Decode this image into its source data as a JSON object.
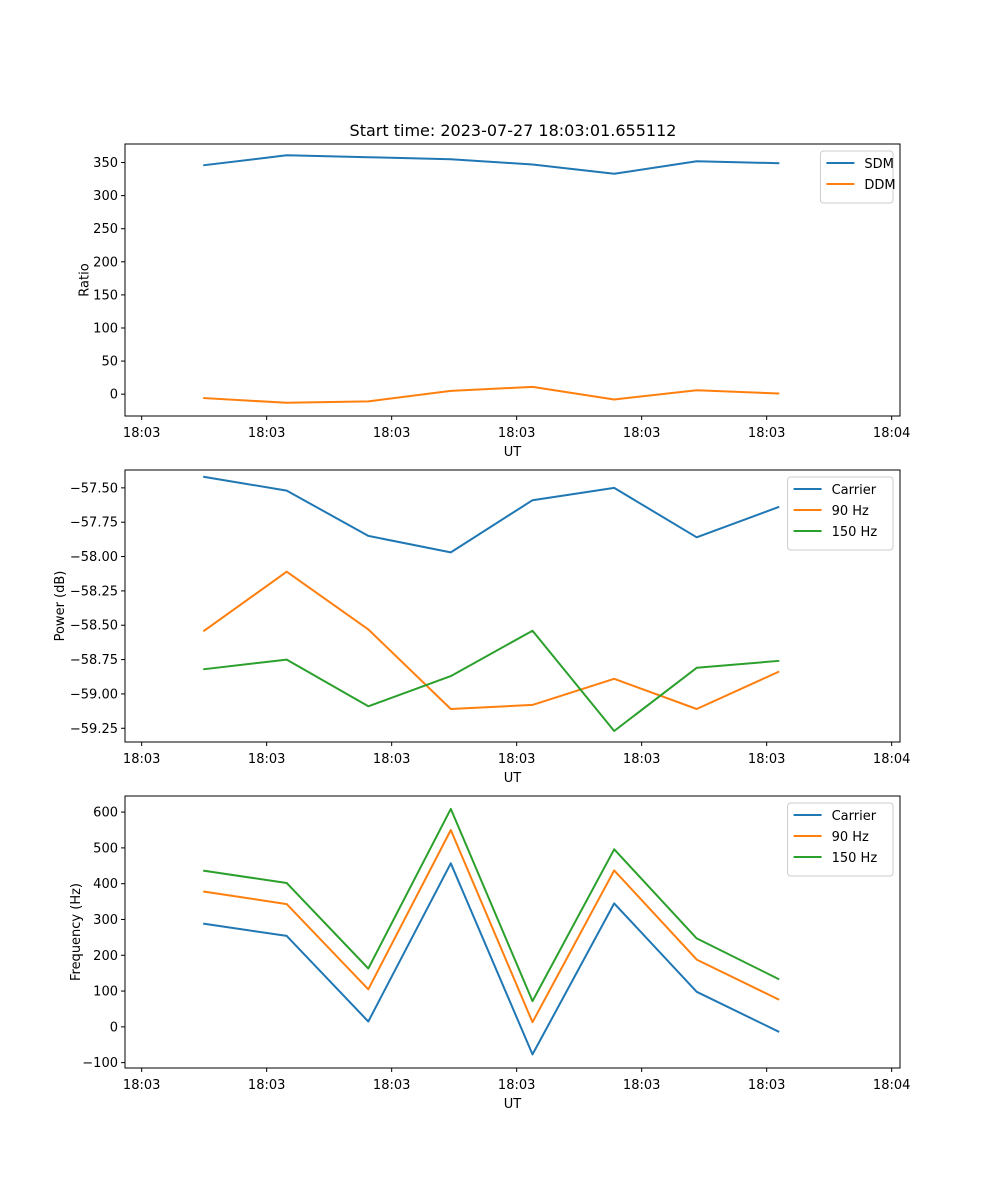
{
  "figure_title": "Start time: 2023-07-27 18:03:01.655112",
  "chart_data": [
    {
      "type": "line",
      "title": "Start time: 2023-07-27 18:03:01.655112",
      "xlabel": "UT",
      "ylabel": "Ratio",
      "xlim": [
        -0.2,
        9.1
      ],
      "ylim": [
        -33,
        378
      ],
      "x_ticks": [
        0,
        1.5,
        3,
        4.5,
        6,
        7.5,
        9
      ],
      "x_tick_labels": [
        "18:03",
        "18:03",
        "18:03",
        "18:03",
        "18:03",
        "18:03",
        "18:04"
      ],
      "y_ticks": [
        0,
        50,
        100,
        150,
        200,
        250,
        300,
        350
      ],
      "y_tick_labels": [
        "0",
        "50",
        "100",
        "150",
        "200",
        "250",
        "300",
        "350"
      ],
      "legend_position": "top-right",
      "x": [
        0.75,
        1.74,
        2.72,
        3.71,
        4.69,
        5.67,
        6.66,
        7.64
      ],
      "series": [
        {
          "name": "SDM",
          "color": "#1f77b4",
          "values": [
            346,
            361,
            358,
            355,
            347,
            333,
            352,
            349
          ]
        },
        {
          "name": "DDM",
          "color": "#ff7f0e",
          "values": [
            -6,
            -13,
            -11,
            5,
            11,
            -8,
            6,
            1
          ]
        }
      ]
    },
    {
      "type": "line",
      "xlabel": "UT",
      "ylabel": "Power (dB)",
      "xlim": [
        -0.2,
        9.1
      ],
      "ylim": [
        -59.35,
        -57.37
      ],
      "x_ticks": [
        0,
        1.5,
        3,
        4.5,
        6,
        7.5,
        9
      ],
      "x_tick_labels": [
        "18:03",
        "18:03",
        "18:03",
        "18:03",
        "18:03",
        "18:03",
        "18:04"
      ],
      "y_ticks": [
        -57.5,
        -57.75,
        -58.0,
        -58.25,
        -58.5,
        -58.75,
        -59.0,
        -59.25
      ],
      "y_tick_labels": [
        "−57.50",
        "−57.75",
        "−58.00",
        "−58.25",
        "−58.50",
        "−58.75",
        "−59.00",
        "−59.25"
      ],
      "legend_position": "top-right",
      "x": [
        0.75,
        1.74,
        2.72,
        3.71,
        4.69,
        5.67,
        6.66,
        7.64
      ],
      "series": [
        {
          "name": "Carrier",
          "color": "#1f77b4",
          "values": [
            -57.42,
            -57.52,
            -57.85,
            -57.97,
            -57.59,
            -57.5,
            -57.86,
            -57.64
          ]
        },
        {
          "name": "90 Hz",
          "color": "#ff7f0e",
          "values": [
            -58.54,
            -58.11,
            -58.53,
            -59.11,
            -59.08,
            -58.89,
            -59.11,
            -58.84
          ]
        },
        {
          "name": "150 Hz",
          "color": "#2ca02c",
          "values": [
            -58.82,
            -58.75,
            -59.09,
            -58.87,
            -58.54,
            -59.27,
            -58.81,
            -58.76
          ]
        }
      ]
    },
    {
      "type": "line",
      "xlabel": "UT",
      "ylabel": "Frequency (Hz)",
      "xlim": [
        -0.2,
        9.1
      ],
      "ylim": [
        -115,
        645
      ],
      "x_ticks": [
        0,
        1.5,
        3,
        4.5,
        6,
        7.5,
        9
      ],
      "x_tick_labels": [
        "18:03",
        "18:03",
        "18:03",
        "18:03",
        "18:03",
        "18:03",
        "18:04"
      ],
      "y_ticks": [
        -100,
        0,
        100,
        200,
        300,
        400,
        500,
        600
      ],
      "y_tick_labels": [
        "−100",
        "0",
        "100",
        "200",
        "300",
        "400",
        "500",
        "600"
      ],
      "legend_position": "top-right",
      "x": [
        0.75,
        1.74,
        2.72,
        3.71,
        4.69,
        5.67,
        6.66,
        7.64
      ],
      "series": [
        {
          "name": "Carrier",
          "color": "#1f77b4",
          "values": [
            288,
            254,
            15,
            457,
            -77,
            345,
            98,
            -13
          ]
        },
        {
          "name": "90 Hz",
          "color": "#ff7f0e",
          "values": [
            378,
            343,
            105,
            550,
            13,
            437,
            188,
            77
          ]
        },
        {
          "name": "150 Hz",
          "color": "#2ca02c",
          "values": [
            436,
            402,
            163,
            609,
            72,
            496,
            247,
            134
          ]
        }
      ]
    }
  ]
}
